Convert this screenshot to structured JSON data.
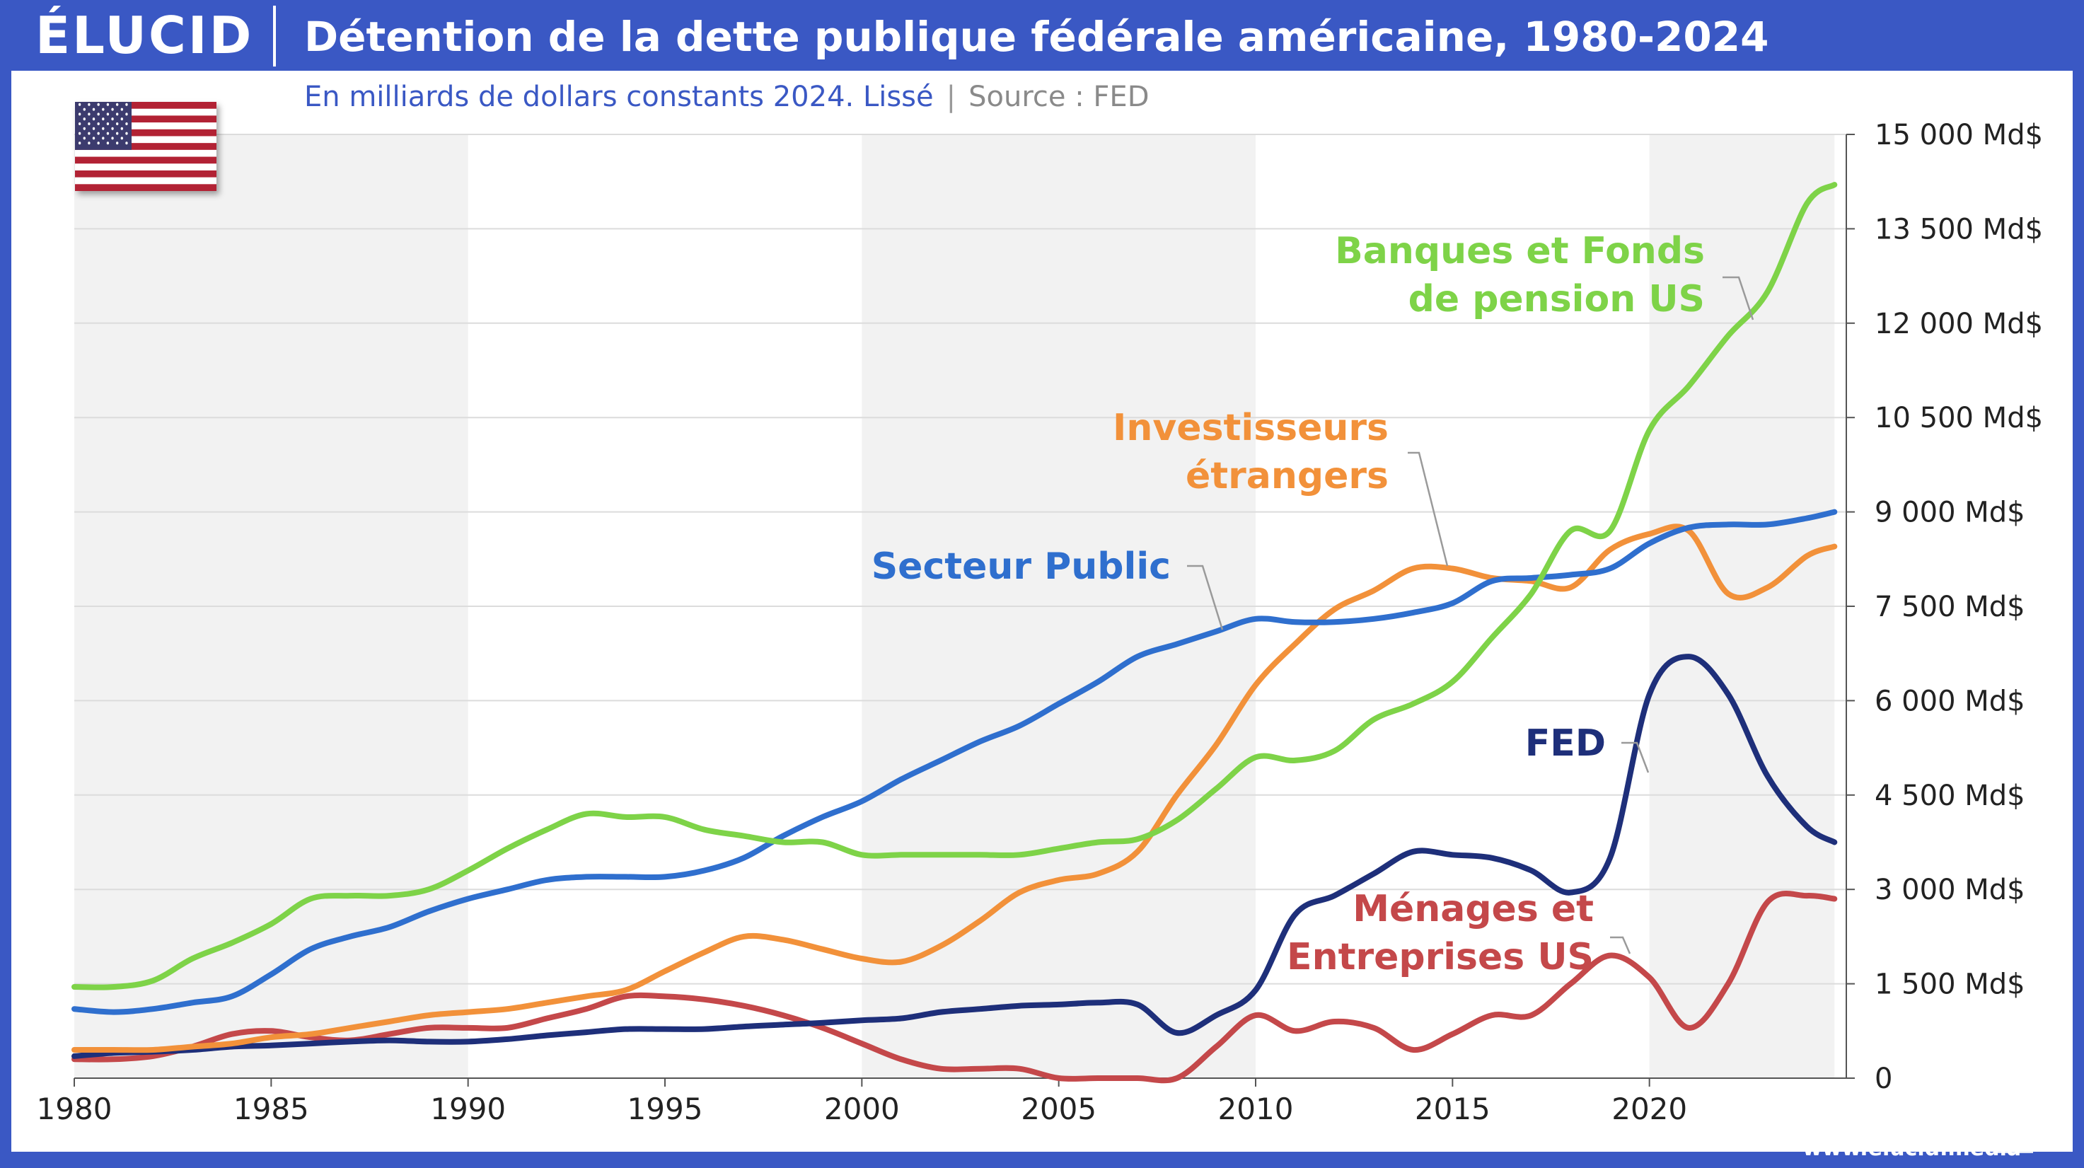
{
  "header": {
    "logo": "ÉLUCID",
    "title": "Détention de la dette publique fédérale américaine, 1980-2024",
    "subtitle": "En milliards de dollars constants 2024. Lissé",
    "separator": "|",
    "source": "Source : FED"
  },
  "footer": {
    "url": "www.elucid.media"
  },
  "flag_icon": "us-flag-icon",
  "colors": {
    "brand": "#3a58c4",
    "secteur_public": "#2f6fce",
    "investisseurs": "#f2913a",
    "banques": "#7ed348",
    "fed": "#1e2f7a",
    "menages": "#c4484a",
    "band": "#f2f2f2"
  },
  "chart_data": {
    "type": "line",
    "title": "Détention de la dette publique fédérale américaine, 1980-2024",
    "subtitle": "En milliards de dollars constants 2024. Lissé",
    "xlabel": "",
    "ylabel": "",
    "xlim": [
      1980,
      2024.7
    ],
    "ylim": [
      0,
      15000
    ],
    "x_ticks": [
      1980,
      1985,
      1990,
      1995,
      2000,
      2005,
      2010,
      2015,
      2020
    ],
    "x_tick_labels": [
      "1980",
      "1985",
      "1990",
      "1995",
      "2000",
      "2005",
      "2010",
      "2015",
      "2020"
    ],
    "y_ticks": [
      0,
      1500,
      3000,
      4500,
      6000,
      7500,
      9000,
      10500,
      12000,
      13500,
      15000
    ],
    "y_tick_labels": [
      "0",
      "1 500 Md$",
      "3 000 Md$",
      "4 500 Md$",
      "6 000 Md$",
      "7 500 Md$",
      "9 000 Md$",
      "10 500 Md$",
      "12 000 Md$",
      "13 500 Md$",
      "15 000 Md$"
    ],
    "y_axis_position": "right",
    "grid": true,
    "shaded_decades": [
      [
        1980,
        1990
      ],
      [
        2000,
        2010
      ],
      [
        2020,
        2024.7
      ]
    ],
    "series": [
      {
        "name": "Banques et Fonds de pension US",
        "label_lines": [
          "Banques et Fonds",
          "de pension US"
        ],
        "color": "#7ed348",
        "x": [
          1980,
          1981,
          1982,
          1983,
          1984,
          1985,
          1986,
          1987,
          1988,
          1989,
          1990,
          1991,
          1992,
          1993,
          1994,
          1995,
          1996,
          1997,
          1998,
          1999,
          2000,
          2001,
          2002,
          2003,
          2004,
          2005,
          2006,
          2007,
          2008,
          2009,
          2010,
          2011,
          2012,
          2013,
          2014,
          2015,
          2016,
          2017,
          2018,
          2019,
          2020,
          2021,
          2022,
          2023,
          2024,
          2024.7
        ],
        "values": [
          1450,
          1450,
          1550,
          1900,
          2150,
          2450,
          2850,
          2900,
          2900,
          3000,
          3300,
          3650,
          3950,
          4200,
          4150,
          4150,
          3950,
          3850,
          3750,
          3750,
          3550,
          3550,
          3550,
          3550,
          3550,
          3650,
          3750,
          3800,
          4100,
          4600,
          5100,
          5050,
          5200,
          5700,
          5950,
          6300,
          7000,
          7700,
          8700,
          8700,
          10300,
          11000,
          11800,
          12500,
          13900,
          14200
        ]
      },
      {
        "name": "Secteur Public",
        "label_lines": [
          "Secteur Public"
        ],
        "color": "#2f6fce",
        "x": [
          1980,
          1981,
          1982,
          1983,
          1984,
          1985,
          1986,
          1987,
          1988,
          1989,
          1990,
          1991,
          1992,
          1993,
          1994,
          1995,
          1996,
          1997,
          1998,
          1999,
          2000,
          2001,
          2002,
          2003,
          2004,
          2005,
          2006,
          2007,
          2008,
          2009,
          2010,
          2011,
          2012,
          2013,
          2014,
          2015,
          2016,
          2017,
          2018,
          2019,
          2020,
          2021,
          2022,
          2023,
          2024,
          2024.7
        ],
        "values": [
          1100,
          1050,
          1100,
          1200,
          1300,
          1650,
          2050,
          2250,
          2400,
          2650,
          2850,
          3000,
          3150,
          3200,
          3200,
          3200,
          3300,
          3500,
          3850,
          4150,
          4400,
          4750,
          5050,
          5350,
          5600,
          5950,
          6300,
          6700,
          6900,
          7100,
          7300,
          7250,
          7250,
          7300,
          7400,
          7550,
          7900,
          7950,
          8000,
          8100,
          8500,
          8750,
          8800,
          8800,
          8900,
          9000
        ]
      },
      {
        "name": "Investisseurs étrangers",
        "label_lines": [
          "Investisseurs",
          "étrangers"
        ],
        "color": "#f2913a",
        "x": [
          1980,
          1981,
          1982,
          1983,
          1984,
          1985,
          1986,
          1987,
          1988,
          1989,
          1990,
          1991,
          1992,
          1993,
          1994,
          1995,
          1996,
          1997,
          1998,
          1999,
          2000,
          2001,
          2002,
          2003,
          2004,
          2005,
          2006,
          2007,
          2008,
          2009,
          2010,
          2011,
          2012,
          2013,
          2014,
          2015,
          2016,
          2017,
          2018,
          2019,
          2020,
          2021,
          2022,
          2023,
          2024,
          2024.7
        ],
        "values": [
          450,
          450,
          450,
          500,
          550,
          650,
          700,
          800,
          900,
          1000,
          1050,
          1100,
          1200,
          1300,
          1400,
          1700,
          2000,
          2250,
          2200,
          2050,
          1900,
          1850,
          2100,
          2500,
          2950,
          3150,
          3250,
          3600,
          4500,
          5300,
          6250,
          6900,
          7450,
          7750,
          8100,
          8100,
          7950,
          7900,
          7800,
          8400,
          8650,
          8700,
          7700,
          7800,
          8300,
          8450
        ]
      },
      {
        "name": "FED",
        "label_lines": [
          "FED"
        ],
        "color": "#1e2f7a",
        "x": [
          1980,
          1981,
          1982,
          1983,
          1984,
          1985,
          1986,
          1987,
          1988,
          1989,
          1990,
          1991,
          1992,
          1993,
          1994,
          1995,
          1996,
          1997,
          1998,
          1999,
          2000,
          2001,
          2002,
          2003,
          2004,
          2005,
          2006,
          2007,
          2008,
          2009,
          2010,
          2011,
          2012,
          2013,
          2014,
          2015,
          2016,
          2017,
          2018,
          2019,
          2020,
          2021,
          2022,
          2023,
          2024,
          2024.7
        ],
        "values": [
          350,
          400,
          420,
          450,
          500,
          520,
          550,
          580,
          600,
          580,
          580,
          620,
          680,
          730,
          780,
          780,
          780,
          820,
          850,
          880,
          920,
          950,
          1050,
          1100,
          1150,
          1170,
          1200,
          1170,
          720,
          1000,
          1400,
          2600,
          2900,
          3250,
          3600,
          3550,
          3500,
          3300,
          2950,
          3500,
          6100,
          6700,
          6100,
          4800,
          4000,
          3750
        ]
      },
      {
        "name": "Ménages et Entreprises US",
        "label_lines": [
          "Ménages et",
          "Entreprises US"
        ],
        "color": "#c4484a",
        "x": [
          1980,
          1981,
          1982,
          1983,
          1984,
          1985,
          1986,
          1987,
          1988,
          1989,
          1990,
          1991,
          1992,
          1993,
          1994,
          1995,
          1996,
          1997,
          1998,
          1999,
          2000,
          2001,
          2002,
          2003,
          2004,
          2005,
          2006,
          2007,
          2008,
          2009,
          2010,
          2011,
          2012,
          2013,
          2014,
          2015,
          2016,
          2017,
          2018,
          2019,
          2020,
          2021,
          2022,
          2023,
          2024,
          2024.7
        ],
        "values": [
          300,
          300,
          350,
          500,
          700,
          750,
          650,
          600,
          700,
          800,
          800,
          800,
          950,
          1100,
          1300,
          1300,
          1250,
          1150,
          1000,
          800,
          550,
          300,
          150,
          150,
          150,
          0,
          0,
          0,
          0,
          500,
          1000,
          750,
          900,
          800,
          450,
          700,
          1000,
          1000,
          1500,
          1950,
          1600,
          800,
          1500,
          2800,
          2900,
          2850
        ]
      }
    ]
  }
}
